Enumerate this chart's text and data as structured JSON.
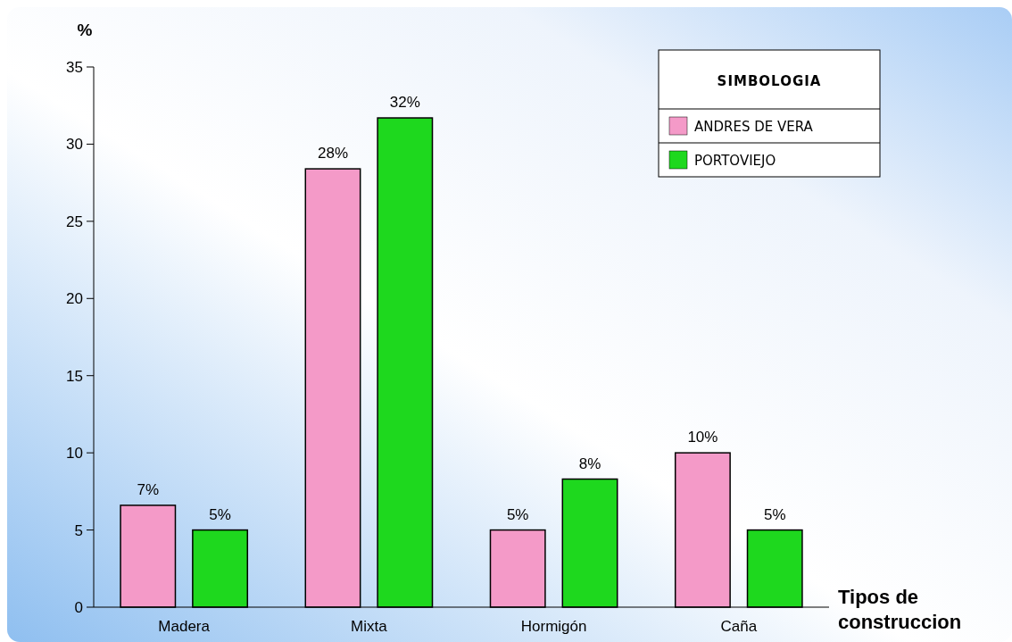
{
  "chart_data": {
    "type": "bar",
    "ylabel": "%",
    "xlabel": "Tipos de construccion",
    "legend_title": "SIMBOLOGIA",
    "legend": "top right",
    "grid": false,
    "categories": [
      "Madera",
      "Mixta",
      "Hormigón",
      "Caña"
    ],
    "ylim": [
      0,
      35
    ],
    "yticks": [
      0,
      5,
      10,
      15,
      20,
      25,
      30,
      35
    ],
    "series": [
      {
        "name": "ANDRES DE VERA",
        "color": "#f49ac8",
        "values": [
          6.6,
          28.4,
          5,
          10
        ],
        "value_labels": [
          "7%",
          "28%",
          "5%",
          "10%"
        ]
      },
      {
        "name": "PORTOVIEJO",
        "color": "#1ed81e",
        "values": [
          5,
          31.7,
          8.3,
          5
        ],
        "value_labels": [
          "5%",
          "32%",
          "8%",
          "5%"
        ]
      }
    ]
  }
}
